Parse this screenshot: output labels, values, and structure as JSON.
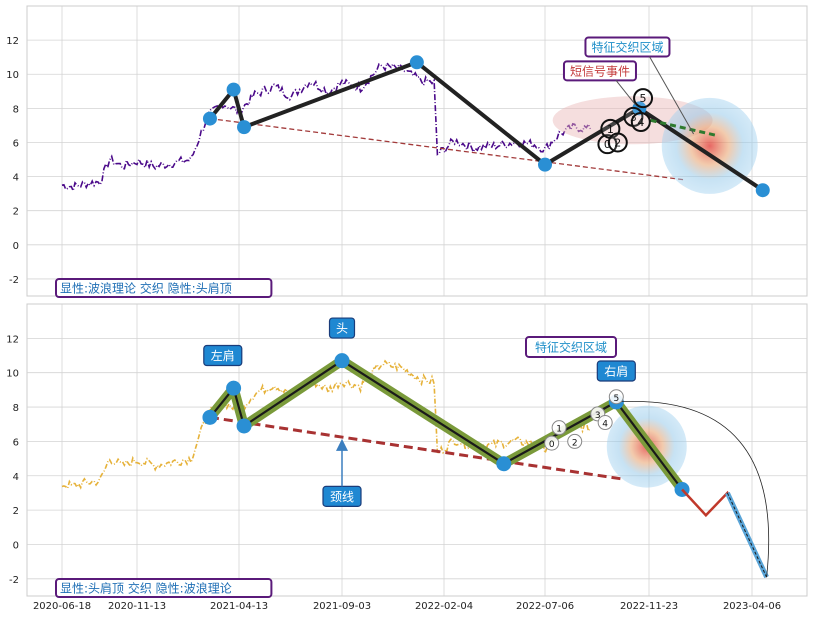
{
  "chart_data": {
    "type": "line",
    "x_tick_labels": [
      "2020-06-18",
      "2020-11-13",
      "2021-04-13",
      "2021-09-03",
      "2022-02-04",
      "2022-07-06",
      "2022-11-23",
      "2023-04-06"
    ],
    "panels": [
      {
        "id": "top",
        "ylim": [
          -3,
          14
        ],
        "yticks": [
          -2,
          0,
          2,
          4,
          6,
          8,
          10,
          12
        ],
        "caption": "显性:波浪理论 交织 隐性:头肩顶",
        "price_series": [
          {
            "date": "2020-06-18",
            "v": 3.5
          },
          {
            "date": "2020-07-10",
            "v": 3.4
          },
          {
            "date": "2020-08-05",
            "v": 3.6
          },
          {
            "date": "2020-09-01",
            "v": 3.7
          },
          {
            "date": "2020-09-20",
            "v": 5.0
          },
          {
            "date": "2020-10-15",
            "v": 4.6
          },
          {
            "date": "2020-11-13",
            "v": 4.9
          },
          {
            "date": "2020-12-10",
            "v": 4.6
          },
          {
            "date": "2021-01-05",
            "v": 4.8
          },
          {
            "date": "2021-02-01",
            "v": 5.0
          },
          {
            "date": "2021-02-25",
            "v": 7.5
          },
          {
            "date": "2021-03-20",
            "v": 8.3
          },
          {
            "date": "2021-04-13",
            "v": 7.8
          },
          {
            "date": "2021-05-05",
            "v": 8.8
          },
          {
            "date": "2021-06-01",
            "v": 9.3
          },
          {
            "date": "2021-06-25",
            "v": 8.7
          },
          {
            "date": "2021-07-20",
            "v": 9.6
          },
          {
            "date": "2021-08-15",
            "v": 9.0
          },
          {
            "date": "2021-09-03",
            "v": 9.5
          },
          {
            "date": "2021-10-01",
            "v": 9.2
          },
          {
            "date": "2021-11-01",
            "v": 10.5
          },
          {
            "date": "2021-12-01",
            "v": 10.3
          },
          {
            "date": "2022-01-01",
            "v": 9.6
          },
          {
            "date": "2022-01-20",
            "v": 9.5
          },
          {
            "date": "2022-01-25",
            "v": 5.3
          },
          {
            "date": "2022-02-20",
            "v": 6.1
          },
          {
            "date": "2022-03-20",
            "v": 5.7
          },
          {
            "date": "2022-04-20",
            "v": 5.8
          },
          {
            "date": "2022-05-20",
            "v": 6.0
          },
          {
            "date": "2022-06-20",
            "v": 5.9
          },
          {
            "date": "2022-07-06",
            "v": 5.6
          },
          {
            "date": "2022-07-25",
            "v": 6.5
          },
          {
            "date": "2022-08-15",
            "v": 6.9
          },
          {
            "date": "2022-09-05",
            "v": 6.8
          }
        ],
        "zigzag": [
          {
            "date": "2021-03-01",
            "v": 7.4
          },
          {
            "date": "2021-04-05",
            "v": 9.1
          },
          {
            "date": "2021-04-20",
            "v": 6.9
          },
          {
            "date": "2021-12-25",
            "v": 10.7
          },
          {
            "date": "2022-07-06",
            "v": 4.7
          },
          {
            "date": "2022-11-10",
            "v": 8.0
          },
          {
            "date": "2023-04-20",
            "v": 3.2
          }
        ],
        "neckline": [
          {
            "date": "2021-03-01",
            "v": 7.4
          },
          {
            "date": "2023-01-10",
            "v": 3.8
          }
        ],
        "wave_labels": [
          {
            "text": "0",
            "date": "2022-09-28",
            "v": 5.9
          },
          {
            "text": "1",
            "date": "2022-10-02",
            "v": 6.8
          },
          {
            "text": "2",
            "date": "2022-10-12",
            "v": 6.0
          },
          {
            "text": "3",
            "date": "2022-11-02",
            "v": 7.5
          },
          {
            "text": "4",
            "date": "2022-11-12",
            "v": 7.2
          },
          {
            "text": "5",
            "date": "2022-11-15",
            "v": 8.6
          }
        ],
        "annotations": [
          {
            "text": "特征交织区域",
            "color": "#1f8fc9",
            "date": "2022-10-25",
            "v": 11.6
          },
          {
            "text": "短信号事件",
            "color": "#c43b3b",
            "date": "2022-09-18",
            "v": 10.2
          }
        ]
      },
      {
        "id": "bottom",
        "ylim": [
          -3,
          14
        ],
        "yticks": [
          -2,
          0,
          2,
          4,
          6,
          8,
          10,
          12
        ],
        "caption": "显性:头肩顶 交织 隐性:波浪理论",
        "zigzag": [
          {
            "date": "2021-03-01",
            "v": 7.4
          },
          {
            "date": "2021-04-05",
            "v": 9.1
          },
          {
            "date": "2021-04-20",
            "v": 6.9
          },
          {
            "date": "2021-09-03",
            "v": 10.7
          },
          {
            "date": "2022-05-05",
            "v": 4.7
          },
          {
            "date": "2022-10-10",
            "v": 8.3
          },
          {
            "date": "2023-01-05",
            "v": 3.2
          }
        ],
        "projection": [
          {
            "date": "2023-01-05",
            "v": 3.2
          },
          {
            "date": "2023-02-05",
            "v": 1.7
          },
          {
            "date": "2023-03-05",
            "v": 3.0
          },
          {
            "date": "2023-04-25",
            "v": -1.9
          }
        ],
        "neckline": [
          {
            "date": "2021-03-01",
            "v": 7.4
          },
          {
            "date": "2022-10-20",
            "v": 3.8
          }
        ],
        "wave_labels": [
          {
            "text": "0",
            "date": "2022-07-15",
            "v": 5.9
          },
          {
            "text": "1",
            "date": "2022-07-25",
            "v": 6.8
          },
          {
            "text": "2",
            "date": "2022-08-15",
            "v": 6.0
          },
          {
            "text": "3",
            "date": "2022-09-15",
            "v": 7.6
          },
          {
            "text": "4",
            "date": "2022-09-25",
            "v": 7.1
          },
          {
            "text": "5",
            "date": "2022-10-10",
            "v": 8.6
          }
        ],
        "labels": [
          {
            "text": "左肩",
            "date": "2021-03-20",
            "v": 11.0
          },
          {
            "text": "头",
            "date": "2021-09-03",
            "v": 12.6
          },
          {
            "text": "颈线",
            "date": "2021-09-03",
            "v": 2.8
          },
          {
            "text": "右肩",
            "date": "2022-10-10",
            "v": 10.1
          },
          {
            "text": "特征交织区域",
            "date": "2022-08-10",
            "v": 11.5
          }
        ]
      }
    ]
  }
}
